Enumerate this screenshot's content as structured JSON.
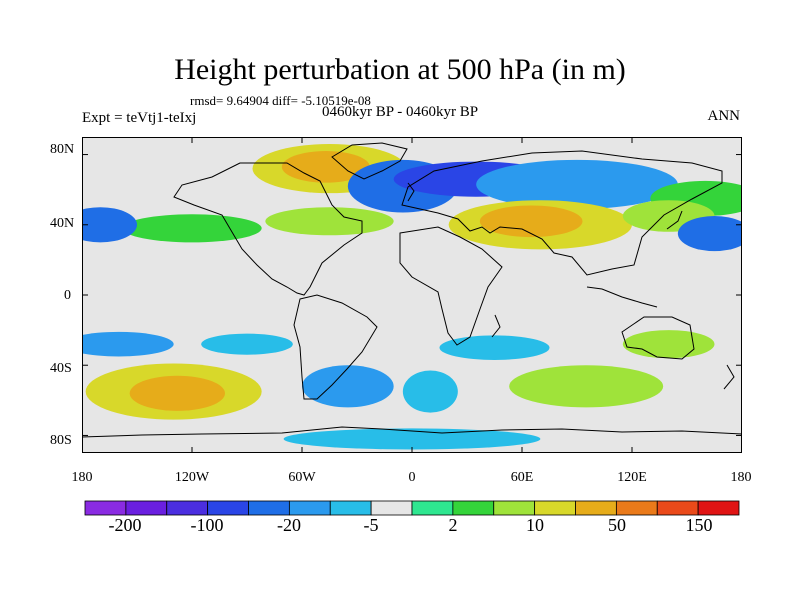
{
  "title": "Height perturbation at 500 hPa (in m)",
  "stats": "rmsd= 9.64904 diff= -5.10519e-08",
  "experiment": "Expt = teVtj1-teIxj",
  "period": "0460kyr BP - 0460kyr BP",
  "season": "ANN",
  "map": {
    "projection": "cylindrical equidistant",
    "lon_range": [
      -180,
      180
    ],
    "lat_range": [
      -90,
      90
    ],
    "y_ticks": [
      {
        "lat": 80,
        "label": "80N"
      },
      {
        "lat": 40,
        "label": "40N"
      },
      {
        "lat": 0,
        "label": "0"
      },
      {
        "lat": -40,
        "label": "40S"
      },
      {
        "lat": -80,
        "label": "80S"
      }
    ],
    "x_ticks": [
      {
        "lon": -180,
        "label": "180"
      },
      {
        "lon": -120,
        "label": "120W"
      },
      {
        "lon": -60,
        "label": "60W"
      },
      {
        "lon": 0,
        "label": "0"
      },
      {
        "lon": 60,
        "label": "60E"
      },
      {
        "lon": 120,
        "label": "120E"
      },
      {
        "lon": 180,
        "label": "180"
      }
    ],
    "neutral_color": "#e6e6e6",
    "anomaly_regions": [
      {
        "name": "greenland-high",
        "lon": -45,
        "lat": 72,
        "rlon": 42,
        "rlat": 14,
        "level": 11
      },
      {
        "name": "greenland-high-core",
        "lon": -47,
        "lat": 73,
        "rlon": 24,
        "rlat": 9,
        "level": 12
      },
      {
        "name": "north-atlantic-low",
        "lon": -5,
        "lat": 62,
        "rlon": 30,
        "rlat": 15,
        "level": 4
      },
      {
        "name": "europe-low",
        "lon": 35,
        "lat": 66,
        "rlon": 45,
        "rlat": 10,
        "level": 3
      },
      {
        "name": "north-asia-low",
        "lon": 90,
        "lat": 63,
        "rlon": 55,
        "rlat": 14,
        "level": 5
      },
      {
        "name": "north-pacific-high",
        "lon": 160,
        "lat": 55,
        "rlon": 30,
        "rlat": 10,
        "level": 9
      },
      {
        "name": "north-atlantic-high",
        "lon": -45,
        "lat": 42,
        "rlon": 35,
        "rlat": 8,
        "level": 10
      },
      {
        "name": "north-america-band",
        "lon": -120,
        "lat": 38,
        "rlon": 38,
        "rlat": 8,
        "level": 9
      },
      {
        "name": "central-asia-high",
        "lon": 70,
        "lat": 40,
        "rlon": 50,
        "rlat": 14,
        "level": 11
      },
      {
        "name": "central-asia-high-core",
        "lon": 65,
        "lat": 42,
        "rlon": 28,
        "rlat": 9,
        "level": 12
      },
      {
        "name": "east-asia-band",
        "lon": 140,
        "lat": 45,
        "rlon": 25,
        "rlat": 9,
        "level": 10
      },
      {
        "name": "northeast-pacific-low",
        "lon": -170,
        "lat": 40,
        "rlon": 20,
        "rlat": 10,
        "level": 4
      },
      {
        "name": "east-pacific-low",
        "lon": 165,
        "lat": 35,
        "rlon": 20,
        "rlat": 10,
        "level": 4
      },
      {
        "name": "south-pacific-low",
        "lon": -160,
        "lat": -28,
        "rlon": 30,
        "rlat": 7,
        "level": 5
      },
      {
        "name": "south-pacific-band",
        "lon": -90,
        "lat": -28,
        "rlon": 25,
        "rlat": 6,
        "level": 6
      },
      {
        "name": "indian-ocean-low",
        "lon": 45,
        "lat": -30,
        "rlon": 30,
        "rlat": 7,
        "level": 6
      },
      {
        "name": "australia-high",
        "lon": 140,
        "lat": -28,
        "rlon": 25,
        "rlat": 8,
        "level": 10
      },
      {
        "name": "south-pacific-high",
        "lon": -130,
        "lat": -55,
        "rlon": 48,
        "rlat": 16,
        "level": 11
      },
      {
        "name": "south-pacific-high-core",
        "lon": -128,
        "lat": -56,
        "rlon": 26,
        "rlat": 10,
        "level": 12
      },
      {
        "name": "south-atlantic-low",
        "lon": -35,
        "lat": -52,
        "rlon": 25,
        "rlat": 12,
        "level": 5
      },
      {
        "name": "south-indian-high",
        "lon": 95,
        "lat": -52,
        "rlon": 42,
        "rlat": 12,
        "level": 10
      },
      {
        "name": "southern-ocean-low",
        "lon": 10,
        "lat": -55,
        "rlon": 15,
        "rlat": 12,
        "level": 6
      },
      {
        "name": "antarctic-low",
        "lon": 0,
        "lat": -82,
        "rlon": 70,
        "rlat": 6,
        "level": 6
      }
    ]
  },
  "colorbar": {
    "colors": [
      "#8a2be2",
      "#6a1fe0",
      "#4b2ee0",
      "#2a45e6",
      "#1f6ee6",
      "#2b9aee",
      "#28bde8",
      "#e6e6e6",
      "#2ee690",
      "#34d43a",
      "#9fe33a",
      "#d8d82a",
      "#e6ac1a",
      "#ea7a1a",
      "#ea4a1a",
      "#e01414"
    ],
    "labels": [
      "-200",
      "-100",
      "-20",
      "-5",
      "2",
      "10",
      "50",
      "150"
    ]
  }
}
